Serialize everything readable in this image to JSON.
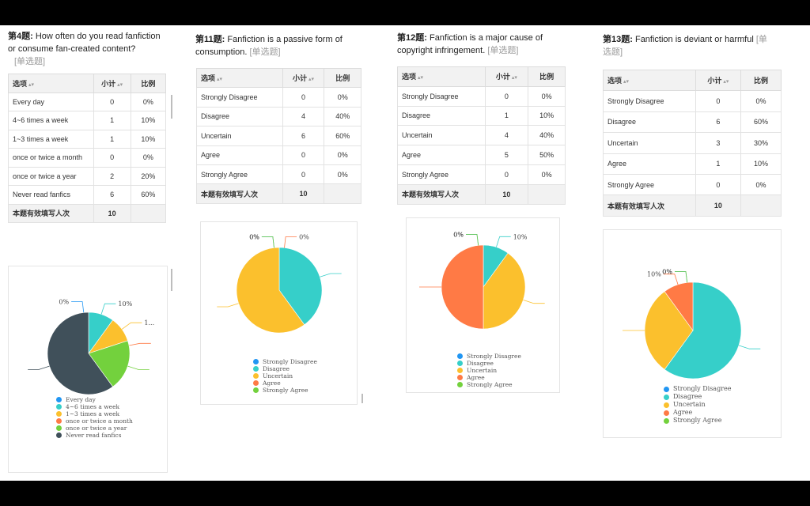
{
  "colors": {
    "strongly_disagree": "#2196f3",
    "disagree": "#36cfc9",
    "uncertain": "#fbc02d",
    "agree": "#ff7a45",
    "strongly_agree": "#73d13d",
    "never": "#40505a"
  },
  "table_headers": {
    "option": "选项",
    "count": "小计",
    "ratio": "比例"
  },
  "toolbar": [
    "prev-icon",
    "next-icon",
    "pen-icon",
    "slides-icon",
    "zoom-icon",
    "grid-icon",
    "video-icon",
    "more-icon"
  ],
  "panels": [
    {
      "qnum": "第4题:",
      "title": "How often do you read fanfiction or consume fan-created content?",
      "tag": "[单选题]",
      "rows": [
        {
          "label": "Every day",
          "count": "0",
          "ratio": "0%"
        },
        {
          "label": "4~6 times a week",
          "count": "1",
          "ratio": "10%"
        },
        {
          "label": "1~3 times a week",
          "count": "1",
          "ratio": "10%"
        },
        {
          "label": "once or twice a month",
          "count": "0",
          "ratio": "0%"
        },
        {
          "label": "once or twice a year",
          "count": "2",
          "ratio": "20%"
        },
        {
          "label": "Never read fanfics",
          "count": "6",
          "ratio": "60%"
        }
      ],
      "total_label": "本题有效填写人次",
      "total": "10"
    },
    {
      "qnum": "第11题:",
      "title": "Fanfiction is a passive form of consumption.",
      "tag": "[单选题]",
      "rows": [
        {
          "label": "Strongly Disagree",
          "count": "0",
          "ratio": "0%"
        },
        {
          "label": "Disagree",
          "count": "4",
          "ratio": "40%"
        },
        {
          "label": "Uncertain",
          "count": "6",
          "ratio": "60%"
        },
        {
          "label": "Agree",
          "count": "0",
          "ratio": "0%"
        },
        {
          "label": "Strongly Agree",
          "count": "0",
          "ratio": "0%"
        }
      ],
      "total_label": "本题有效填写人次",
      "total": "10"
    },
    {
      "qnum": "第12题:",
      "title": "Fanfiction is a major cause of copyright infringement.",
      "tag": "[单选题]",
      "rows": [
        {
          "label": "Strongly Disagree",
          "count": "0",
          "ratio": "0%"
        },
        {
          "label": "Disagree",
          "count": "1",
          "ratio": "10%"
        },
        {
          "label": "Uncertain",
          "count": "4",
          "ratio": "40%"
        },
        {
          "label": "Agree",
          "count": "5",
          "ratio": "50%"
        },
        {
          "label": "Strongly Agree",
          "count": "0",
          "ratio": "0%"
        }
      ],
      "total_label": "本题有效填写人次",
      "total": "10"
    },
    {
      "qnum": "第13题:",
      "title": "Fanfiction is deviant or harmful",
      "tag": "[单选题]",
      "rows": [
        {
          "label": "Strongly Disagree",
          "count": "0",
          "ratio": "0%"
        },
        {
          "label": "Disagree",
          "count": "6",
          "ratio": "60%"
        },
        {
          "label": "Uncertain",
          "count": "3",
          "ratio": "30%"
        },
        {
          "label": "Agree",
          "count": "1",
          "ratio": "10%"
        },
        {
          "label": "Strongly Agree",
          "count": "0",
          "ratio": "0%"
        }
      ],
      "total_label": "本题有效填写人次",
      "total": "10"
    }
  ],
  "chart_data": [
    {
      "type": "pie",
      "categories": [
        "Every day",
        "4~6 times a week",
        "1~3 times a week",
        "once or twice a month",
        "once or twice a year",
        "Never read fanfics"
      ],
      "values": [
        0,
        1,
        1,
        0,
        2,
        6
      ],
      "colors": [
        "#2196f3",
        "#36cfc9",
        "#fbc02d",
        "#ff7a45",
        "#73d13d",
        "#40505a"
      ],
      "labels": [
        "0%",
        "10%",
        "1...",
        "",
        "",
        ""
      ],
      "legend": "bottom"
    },
    {
      "type": "pie",
      "categories": [
        "Strongly Disagree",
        "Disagree",
        "Uncertain",
        "Agree",
        "Strongly Agree"
      ],
      "values": [
        0,
        4,
        6,
        0,
        0
      ],
      "colors": [
        "#2196f3",
        "#36cfc9",
        "#fbc02d",
        "#ff7a45",
        "#73d13d"
      ],
      "labels": [
        "0%",
        "",
        "",
        "0%",
        "0%"
      ],
      "legend": "bottom"
    },
    {
      "type": "pie",
      "categories": [
        "Strongly Disagree",
        "Disagree",
        "Uncertain",
        "Agree",
        "Strongly Agree"
      ],
      "values": [
        0,
        1,
        4,
        5,
        0
      ],
      "colors": [
        "#2196f3",
        "#36cfc9",
        "#fbc02d",
        "#ff7a45",
        "#73d13d"
      ],
      "labels": [
        "0%",
        "10%",
        "",
        "",
        "0%"
      ],
      "legend": "bottom"
    },
    {
      "type": "pie",
      "categories": [
        "Strongly Disagree",
        "Disagree",
        "Uncertain",
        "Agree",
        "Strongly Agree"
      ],
      "values": [
        0,
        6,
        3,
        1,
        0
      ],
      "colors": [
        "#2196f3",
        "#36cfc9",
        "#fbc02d",
        "#ff7a45",
        "#73d13d"
      ],
      "labels": [
        "0%",
        "",
        "",
        "10%",
        "0%"
      ],
      "legend": "bottom"
    }
  ]
}
